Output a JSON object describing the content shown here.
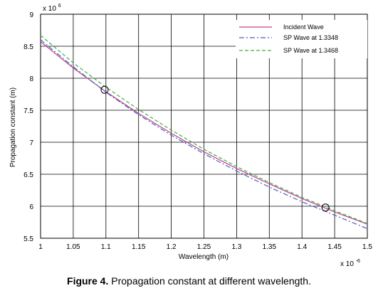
{
  "chart_data": {
    "type": "line",
    "title": "",
    "xlabel": "Wavelength (m)",
    "ylabel": "Propagation constant (m)",
    "x_multiplier_label": "x 10",
    "x_multiplier_exponent": "-6",
    "y_multiplier_label": "x 10",
    "y_multiplier_exponent": "6",
    "xlim": [
      1.0,
      1.5
    ],
    "ylim": [
      5.5,
      9.0
    ],
    "xticks": [
      "1",
      "1.05",
      "1.1",
      "1.15",
      "1.2",
      "1.25",
      "1.3",
      "1.35",
      "1.4",
      "1.45",
      "1.5"
    ],
    "yticks": [
      "5.5",
      "6",
      "6.5",
      "7",
      "7.5",
      "8",
      "8.5",
      "9"
    ],
    "grid": true,
    "legend_position": "top-right",
    "x": [
      1.0,
      1.05,
      1.1,
      1.15,
      1.2,
      1.25,
      1.3,
      1.35,
      1.4,
      1.45,
      1.5
    ],
    "series": [
      {
        "name": "Incident Wave",
        "color": "#c0408c",
        "style": "solid",
        "values": [
          8.57,
          8.16,
          7.79,
          7.45,
          7.14,
          6.85,
          6.59,
          6.35,
          6.12,
          5.91,
          5.72
        ]
      },
      {
        "name": "SP Wave at 1.3348",
        "color": "#4a5fc1",
        "style": "dashdot",
        "values": [
          8.6,
          8.18,
          7.78,
          7.43,
          7.11,
          6.82,
          6.55,
          6.3,
          6.07,
          5.86,
          5.65
        ]
      },
      {
        "name": "SP Wave at 1.3468",
        "color": "#40b040",
        "style": "dashed",
        "values": [
          8.67,
          8.24,
          7.86,
          7.51,
          7.19,
          6.89,
          6.62,
          6.37,
          6.14,
          5.93,
          5.73
        ]
      }
    ],
    "markers": [
      {
        "x": 1.098,
        "y": 7.82,
        "shape": "circle"
      },
      {
        "x": 1.436,
        "y": 5.98,
        "shape": "circle"
      }
    ]
  },
  "caption": {
    "label": "Figure 4.",
    "text": " Propagation constant at different wavelength."
  }
}
